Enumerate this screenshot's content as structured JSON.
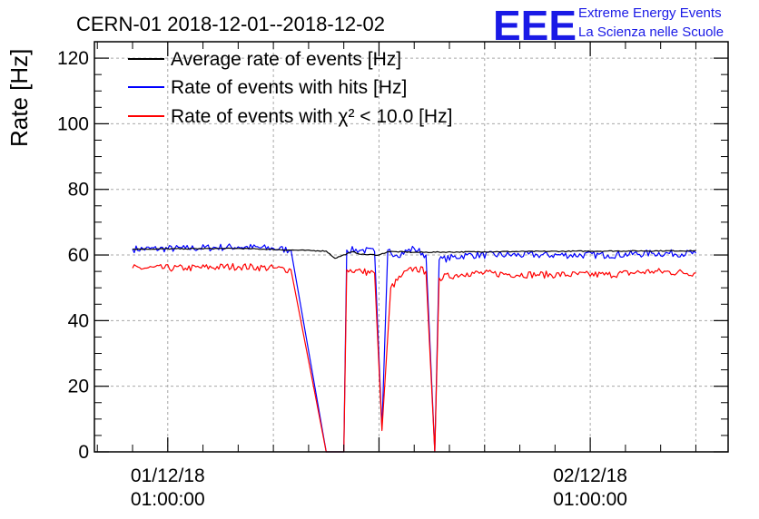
{
  "chart_data": {
    "type": "line",
    "title": "CERN-01 2018-12-01--2018-12-02",
    "ylabel": "Rate [Hz]",
    "xlabel": "",
    "ylim": [
      0,
      125
    ],
    "yticks": [
      0,
      20,
      40,
      60,
      80,
      100,
      120
    ],
    "x_tick_labels": [
      {
        "date": "01/12/18",
        "time": "01:00:00",
        "x": "2018-12-01 01:00"
      },
      {
        "date": "02/12/18",
        "time": "01:00:00",
        "x": "2018-12-02 01:00"
      }
    ],
    "xlim": [
      "2018-11-30 20:50",
      "2018-12-02 08:50"
    ],
    "grid": true,
    "legend_position": "top-left",
    "series": [
      {
        "name": "Average rate of events [Hz]",
        "color": "#000000",
        "points": [
          [
            "2018-11-30 23:00",
            61.8
          ],
          [
            "2018-12-01 02:00",
            61.9
          ],
          [
            "2018-12-01 05:00",
            62.0
          ],
          [
            "2018-12-01 07:00",
            61.7
          ],
          [
            "2018-12-01 08:00",
            61.5
          ],
          [
            "2018-12-01 09:30",
            61.3
          ],
          [
            "2018-12-01 10:00",
            61.2
          ],
          [
            "2018-12-01 10:30",
            59.0
          ],
          [
            "2018-12-01 11:30",
            61.0
          ],
          [
            "2018-12-01 12:00",
            60.2
          ],
          [
            "2018-12-01 13:00",
            60.0
          ],
          [
            "2018-12-01 13:30",
            61.0
          ],
          [
            "2018-12-01 14:00",
            61.0
          ],
          [
            "2018-12-01 15:00",
            60.8
          ],
          [
            "2018-12-01 19:00",
            61.0
          ],
          [
            "2018-12-02 02:00",
            61.2
          ],
          [
            "2018-12-02 07:00",
            61.3
          ]
        ]
      },
      {
        "name": "Rate of events with hits [Hz]",
        "color": "#0000ff",
        "points": [
          [
            "2018-11-30 23:00",
            61.8
          ],
          [
            "2018-12-01 02:00",
            62.0
          ],
          [
            "2018-12-01 05:00",
            62.5
          ],
          [
            "2018-12-01 07:00",
            62.0
          ],
          [
            "2018-12-01 08:00",
            61.5
          ],
          [
            "2018-12-01 10:00",
            0.0
          ],
          [
            "2018-12-01 11:00",
            0.0
          ],
          [
            "2018-12-01 11:10",
            61.5
          ],
          [
            "2018-12-01 12:00",
            61.5
          ],
          [
            "2018-12-01 12:45",
            61.0
          ],
          [
            "2018-12-01 13:10",
            7.0
          ],
          [
            "2018-12-01 13:30",
            61.5
          ],
          [
            "2018-12-01 14:00",
            60.0
          ],
          [
            "2018-12-01 15:00",
            62.0
          ],
          [
            "2018-12-01 15:40",
            60.0
          ],
          [
            "2018-12-01 16:10",
            0.0
          ],
          [
            "2018-12-01 16:25",
            58.5
          ],
          [
            "2018-12-01 18:00",
            60.0
          ],
          [
            "2018-12-01 22:00",
            60.0
          ],
          [
            "2018-12-02 02:00",
            60.0
          ],
          [
            "2018-12-02 04:30",
            60.5
          ],
          [
            "2018-12-02 07:00",
            60.5
          ]
        ]
      },
      {
        "name": "Rate of events with χ² < 10.0 [Hz]",
        "color": "#ff0000",
        "points": [
          [
            "2018-11-30 23:00",
            56.0
          ],
          [
            "2018-12-01 02:00",
            56.0
          ],
          [
            "2018-12-01 05:00",
            56.5
          ],
          [
            "2018-12-01 07:00",
            56.0
          ],
          [
            "2018-12-01 08:00",
            55.5
          ],
          [
            "2018-12-01 10:00",
            0.0
          ],
          [
            "2018-12-01 11:00",
            0.0
          ],
          [
            "2018-12-01 11:10",
            55.5
          ],
          [
            "2018-12-01 12:00",
            55.0
          ],
          [
            "2018-12-01 12:45",
            54.5
          ],
          [
            "2018-12-01 13:10",
            6.5
          ],
          [
            "2018-12-01 13:40",
            50.0
          ],
          [
            "2018-12-01 14:20",
            54.0
          ],
          [
            "2018-12-01 15:00",
            56.0
          ],
          [
            "2018-12-01 15:40",
            55.0
          ],
          [
            "2018-12-01 16:10",
            0.0
          ],
          [
            "2018-12-01 16:25",
            53.0
          ],
          [
            "2018-12-01 18:00",
            54.5
          ],
          [
            "2018-12-01 22:00",
            54.0
          ],
          [
            "2018-12-02 02:00",
            54.0
          ],
          [
            "2018-12-02 04:30",
            55.0
          ],
          [
            "2018-12-02 07:00",
            54.5
          ]
        ]
      }
    ]
  },
  "logo": {
    "mark": "EEE",
    "line1": "Extreme Energy Events",
    "line2": "La Scienza nelle Scuole",
    "color": "#1a1ae6"
  }
}
